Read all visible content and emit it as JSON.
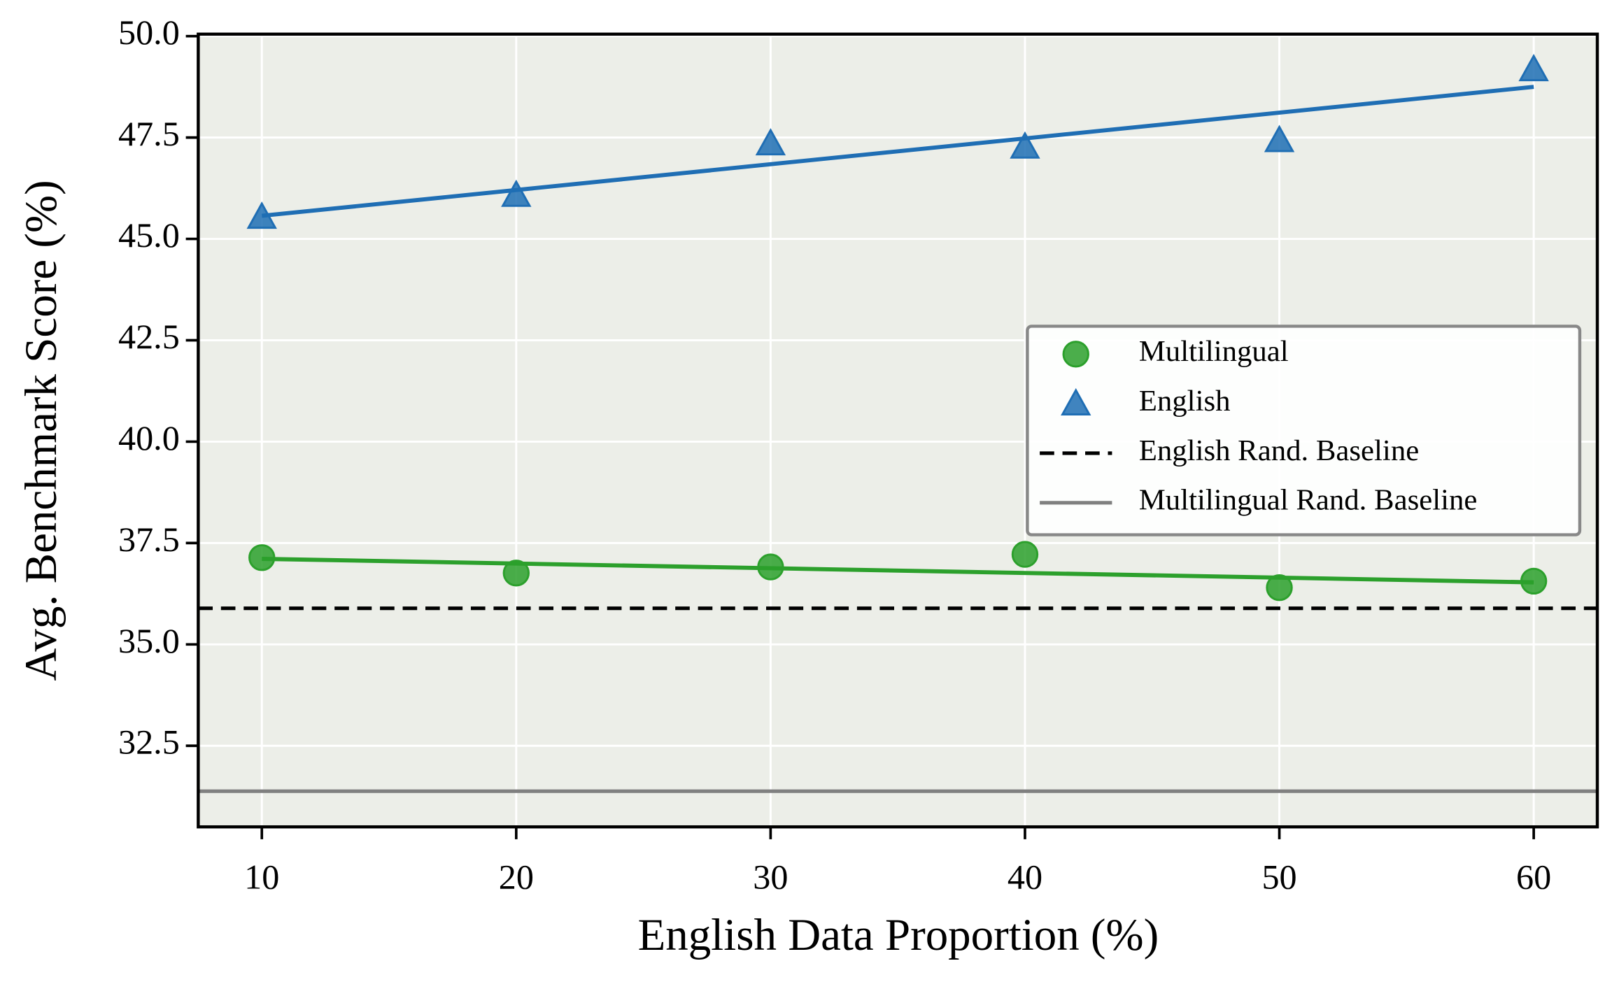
{
  "chart_data": {
    "type": "scatter",
    "x_label": "English Data Proportion (%)",
    "y_label": "Avg. Benchmark Score (%)",
    "x": [
      10,
      20,
      30,
      40,
      50,
      60
    ],
    "series": [
      {
        "name": "Multilingual",
        "color": "#2ca02c",
        "marker": "circle",
        "values": [
          37.14,
          36.76,
          36.91,
          37.22,
          36.4,
          36.56
        ],
        "fit": {
          "x": [
            10,
            60
          ],
          "values": [
            37.11,
            36.53
          ]
        }
      },
      {
        "name": "English",
        "color": "#1f6eb4",
        "marker": "triangle",
        "values": [
          45.54,
          46.08,
          47.35,
          47.27,
          47.43,
          49.18
        ],
        "fit": {
          "x": [
            10,
            60
          ],
          "values": [
            45.57,
            48.75
          ]
        }
      }
    ],
    "reference_lines": [
      {
        "name": "English Rand. Baseline",
        "value": 35.89,
        "color": "#000000",
        "style": "dashed"
      },
      {
        "name": "Multilingual Rand. Baseline",
        "value": 31.38,
        "color": "#808080",
        "style": "solid"
      }
    ],
    "xlim": [
      7.5,
      62.5
    ],
    "ylim": [
      30.5,
      50.05
    ],
    "xticks": [
      10,
      20,
      30,
      40,
      50,
      60
    ],
    "yticks": [
      {
        "value": 32.5,
        "label": "32.5"
      },
      {
        "value": 35,
        "label": "35.0"
      },
      {
        "value": 37.5,
        "label": "37.5"
      },
      {
        "value": 40,
        "label": "40.0"
      },
      {
        "value": 42.5,
        "label": "42.5"
      },
      {
        "value": 45,
        "label": "45.0"
      },
      {
        "value": 47.5,
        "label": "47.5"
      },
      {
        "value": 50,
        "label": "50.0"
      }
    ],
    "grid": true,
    "legend": "center right"
  }
}
